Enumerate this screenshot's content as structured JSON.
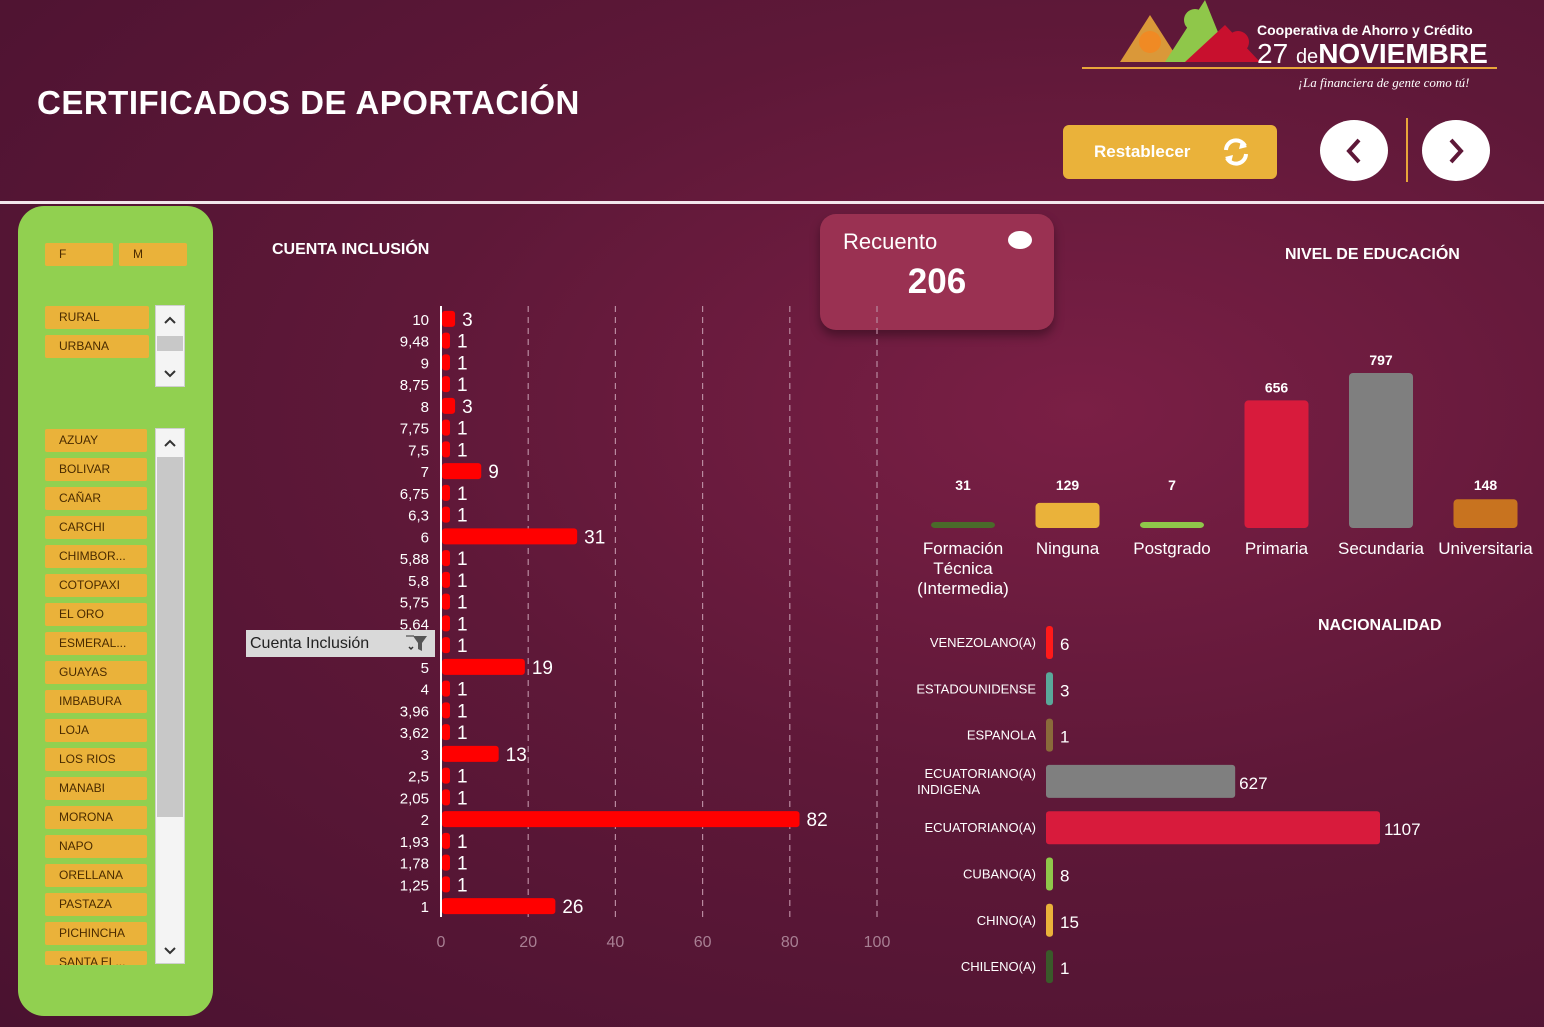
{
  "header": {
    "title": "CERTIFICADOS DE APORTACIÓN",
    "org_line1": "Cooperativa de Ahorro y Crédito",
    "org_num": "27",
    "org_de": "de",
    "org_name": "NOVIEMBRE",
    "org_slogan": "¡La financiera de gente como tú!",
    "reset_label": "Restablecer",
    "icons": [
      "refresh-icon",
      "chevron-left-icon",
      "chevron-right-icon"
    ]
  },
  "slicers": {
    "gender": [
      "F",
      "M"
    ],
    "zone": [
      "RURAL",
      "URBANA"
    ],
    "province": [
      "AZUAY",
      "BOLIVAR",
      "CAÑAR",
      "CARCHI",
      "CHIMBOR...",
      "COTOPAXI",
      "EL ORO",
      "ESMERAL...",
      "GUAYAS",
      "IMBABURA",
      "LOJA",
      "LOS RIOS",
      "MANABI",
      "MORONA",
      "NAPO",
      "ORELLANA",
      "PASTAZA",
      "PICHINCHA",
      "SANTA EL..."
    ]
  },
  "kpi": {
    "label": "Recuento",
    "value": "206"
  },
  "filter_chip": "Cuenta Inclusión",
  "colors": {
    "accent": "#eab23a",
    "panel": "#91d050",
    "bar": "#ff0000",
    "card": "#9a3152"
  },
  "chart_data": [
    {
      "type": "bar",
      "orientation": "horizontal",
      "title": "CUENTA INCLUSIÓN",
      "categories": [
        "10",
        "9,48",
        "9",
        "8,75",
        "8",
        "7,75",
        "7,5",
        "7",
        "6,75",
        "6,3",
        "6",
        "5,88",
        "5,8",
        "5,75",
        "5,64",
        "",
        "5",
        "4",
        "3,96",
        "3,62",
        "3",
        "2,5",
        "2,05",
        "2",
        "1,93",
        "1,78",
        "1,25",
        "1"
      ],
      "values": [
        3,
        1,
        1,
        1,
        3,
        1,
        1,
        9,
        1,
        1,
        31,
        1,
        1,
        1,
        1,
        1,
        19,
        1,
        1,
        1,
        13,
        1,
        1,
        82,
        1,
        1,
        1,
        26
      ],
      "xlim": [
        0,
        100
      ],
      "xticks": [
        "0",
        "20",
        "40",
        "60",
        "80",
        "100"
      ],
      "grid": true
    },
    {
      "type": "bar",
      "title": "NIVEL DE EDUCACIÓN",
      "categories": [
        "Formación Técnica (Intermedia)",
        "Ninguna",
        "Postgrado",
        "Primaria",
        "Secundaria",
        "Universitaria"
      ],
      "values": [
        31,
        129,
        7,
        656,
        797,
        148
      ],
      "colors": [
        "#4a6b2a",
        "#eab23a",
        "#8fc74a",
        "#d81b3c",
        "#7f7f7f",
        "#c8731f"
      ]
    },
    {
      "type": "bar",
      "orientation": "horizontal",
      "title": "NACIONALIDAD",
      "categories": [
        "VENEZOLANO(A)",
        "ESTADOUNIDENSE",
        "ESPANOLA",
        "ECUATORIANO(A) INDIGENA",
        "ECUATORIANO(A)",
        "CUBANO(A)",
        "CHINO(A)",
        "CHILENO(A)"
      ],
      "values": [
        6,
        3,
        1,
        627,
        1107,
        8,
        15,
        1
      ],
      "colors": [
        "#ff1a1a",
        "#5aa89a",
        "#8a6a3a",
        "#7f7f7f",
        "#d81b3c",
        "#8fc74a",
        "#eab23a",
        "#3a5a2a"
      ]
    }
  ]
}
